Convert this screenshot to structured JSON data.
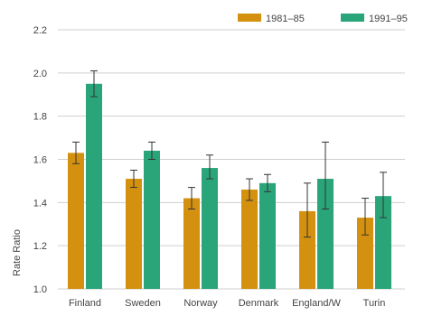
{
  "colors": {
    "series_1981": "#d4910f",
    "series_1991": "#2aa57a",
    "grid": "#cfcfcf",
    "error_bar": "#333333",
    "text": "#444444"
  },
  "chart_data": {
    "type": "bar",
    "title": "",
    "xlabel": "",
    "ylabel": "Rate Ratio",
    "ylim": [
      1.0,
      2.2
    ],
    "yticks": [
      "1.0",
      "1.2",
      "1.4",
      "1.6",
      "1.8",
      "2.0",
      "2.2"
    ],
    "grid": true,
    "legend_position": "top-right",
    "categories": [
      "Finland",
      "Sweden",
      "Norway",
      "Denmark",
      "England/W",
      "Turin"
    ],
    "series": [
      {
        "name": "1981–85",
        "color": "#d4910f",
        "values": [
          1.63,
          1.51,
          1.42,
          1.46,
          1.36,
          1.33
        ],
        "error_low": [
          1.58,
          1.47,
          1.37,
          1.41,
          1.24,
          1.25
        ],
        "error_high": [
          1.68,
          1.55,
          1.47,
          1.51,
          1.49,
          1.42
        ]
      },
      {
        "name": "1991–95",
        "color": "#2aa57a",
        "values": [
          1.95,
          1.64,
          1.56,
          1.49,
          1.51,
          1.43
        ],
        "error_low": [
          1.89,
          1.6,
          1.51,
          1.45,
          1.37,
          1.33
        ],
        "error_high": [
          2.01,
          1.68,
          1.62,
          1.53,
          1.68,
          1.54
        ]
      }
    ]
  }
}
